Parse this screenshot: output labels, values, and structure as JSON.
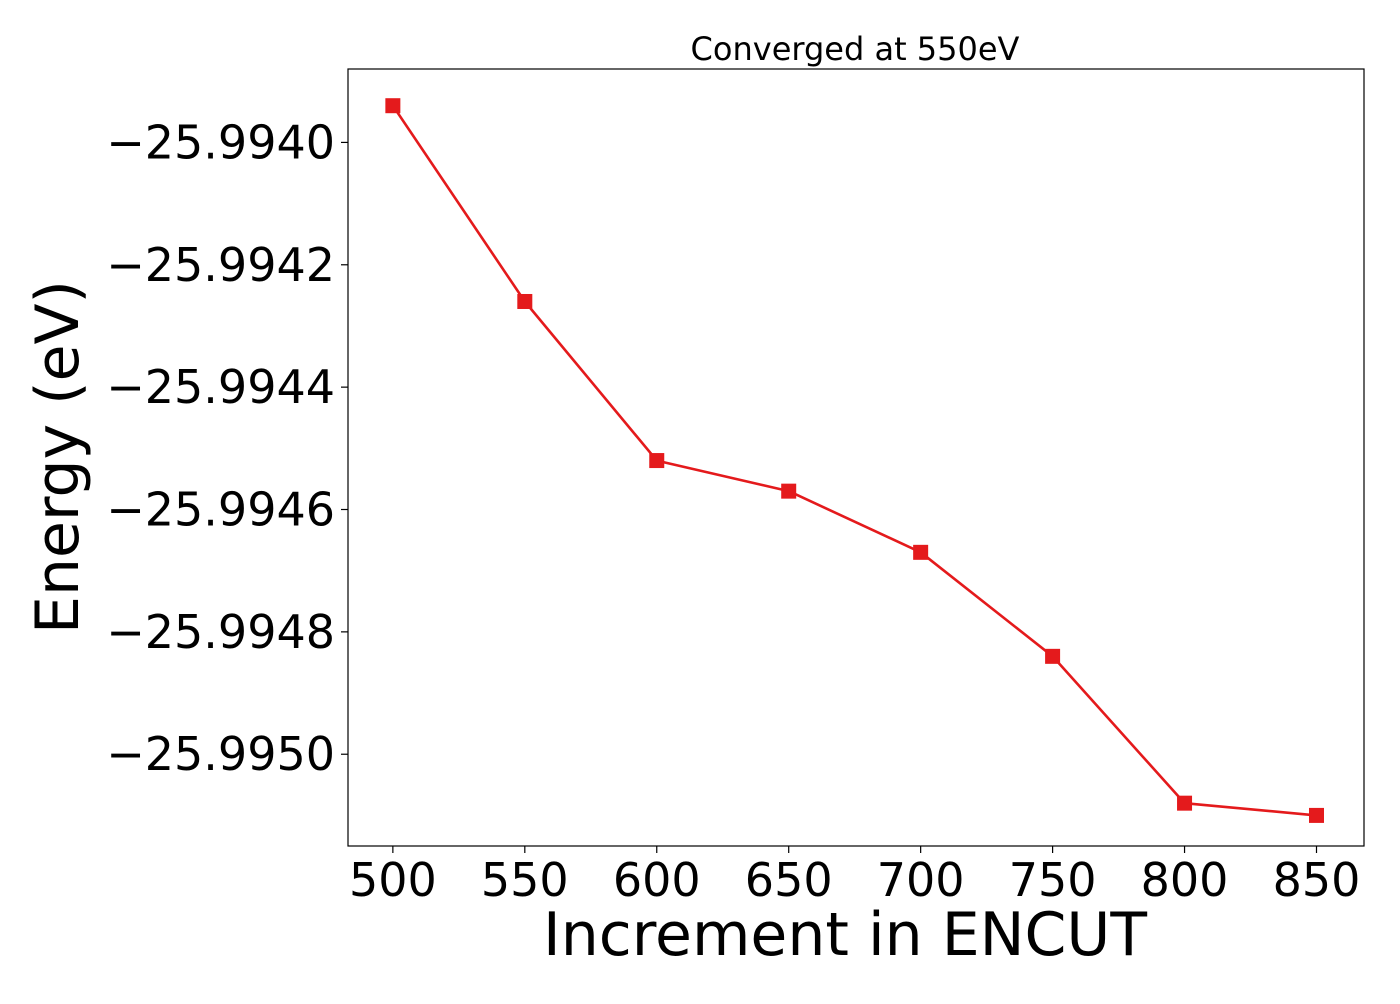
{
  "chart_data": {
    "type": "line",
    "title": "Converged at 550eV",
    "xlabel": "Increment in ENCUT",
    "ylabel": "Energy (eV)",
    "x": [
      500,
      550,
      600,
      650,
      700,
      750,
      800,
      850
    ],
    "series": [
      {
        "values": [
          -25.99394,
          -25.99426,
          -25.99452,
          -25.99457,
          -25.99467,
          -25.99484,
          -25.99508,
          -25.9951
        ],
        "color": "#e41a1c",
        "marker": "square",
        "line_style": "solid"
      }
    ],
    "xlim": [
      483,
      868
    ],
    "ylim": [
      -25.99515,
      -25.99388
    ],
    "x_ticks": [
      {
        "value": 500,
        "label": "500"
      },
      {
        "value": 550,
        "label": "550"
      },
      {
        "value": 600,
        "label": "600"
      },
      {
        "value": 650,
        "label": "650"
      },
      {
        "value": 700,
        "label": "700"
      },
      {
        "value": 750,
        "label": "750"
      },
      {
        "value": 800,
        "label": "800"
      },
      {
        "value": 850,
        "label": "850"
      }
    ],
    "y_ticks": [
      {
        "value": -25.994,
        "label": "−25.9940"
      },
      {
        "value": -25.9942,
        "label": "−25.9942"
      },
      {
        "value": -25.9944,
        "label": "−25.9944"
      },
      {
        "value": -25.9946,
        "label": "−25.9946"
      },
      {
        "value": -25.9948,
        "label": "−25.9948"
      },
      {
        "value": -25.995,
        "label": "−25.9950"
      }
    ],
    "grid": false,
    "legend": "none"
  }
}
